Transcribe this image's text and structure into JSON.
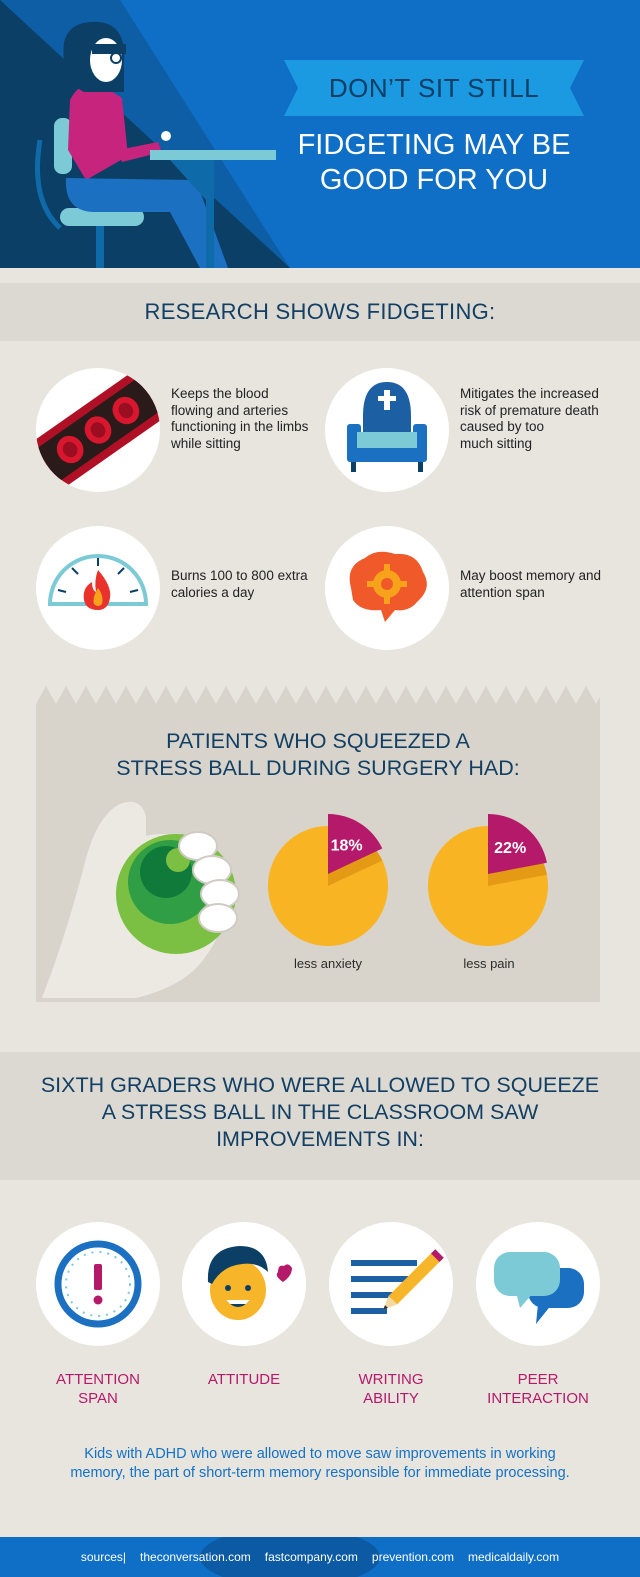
{
  "header": {
    "ribbon_text": "DON’T SIT STILL",
    "subtitle_line1": "FIDGETING MAY BE",
    "subtitle_line2": "GOOD FOR YOU"
  },
  "research": {
    "title": "RESEARCH SHOWS FIDGETING:",
    "items": [
      {
        "icon": "blood-vessel-icon",
        "lines": [
          "Keeps the blood",
          "flowing and arteries",
          "functioning in the limbs",
          "while sitting"
        ]
      },
      {
        "icon": "armchair-tombstone-icon",
        "lines": [
          "Mitigates the increased",
          "risk of premature death",
          "caused by too",
          "much sitting"
        ]
      },
      {
        "icon": "calorie-gauge-flame-icon",
        "lines": [
          "Burns 100 to 800 extra",
          "calories a day"
        ]
      },
      {
        "icon": "brain-gear-icon",
        "lines": [
          "May boost memory and",
          "attention span"
        ]
      }
    ]
  },
  "surgery": {
    "title_line1": "PATIENTS WHO SQUEEZED A",
    "title_line2": "STRESS BALL DURING SURGERY HAD:",
    "stats": [
      {
        "value": 18,
        "label_value": "18%",
        "caption": "less anxiety"
      },
      {
        "value": 22,
        "label_value": "22%",
        "caption": "less pain"
      }
    ]
  },
  "sixth_graders": {
    "title_line1": "SIXTH GRADERS WHO WERE ALLOWED TO SQUEEZE",
    "title_line2": "A STRESS BALL IN THE CLASSROOM SAW",
    "title_line3": "IMPROVEMENTS IN:",
    "improvements": [
      {
        "icon": "clock-alert-icon",
        "line1": "ATTENTION",
        "line2": "SPAN"
      },
      {
        "icon": "smiling-kid-heart-icon",
        "line1": "ATTITUDE",
        "line2": ""
      },
      {
        "icon": "pencil-lines-icon",
        "line1": "WRITING",
        "line2": "ABILITY"
      },
      {
        "icon": "speech-bubbles-icon",
        "line1": "PEER",
        "line2": "INTERACTION"
      }
    ]
  },
  "kids_note": {
    "line1": "Kids with ADHD who were allowed to move saw improvements in working",
    "line2": "memory, the part of short-term memory responsible for immediate processing."
  },
  "footer": {
    "sources_label": "sources|",
    "sources": [
      "theconversation.com",
      "fastcompany.com",
      "prevention.com",
      "medicaldaily.com"
    ]
  },
  "colors": {
    "header_blue": "#0f6fc6",
    "navy": "#123f63",
    "magenta": "#b5196a",
    "yellow": "#f9b424",
    "background": "#e8e5df"
  }
}
